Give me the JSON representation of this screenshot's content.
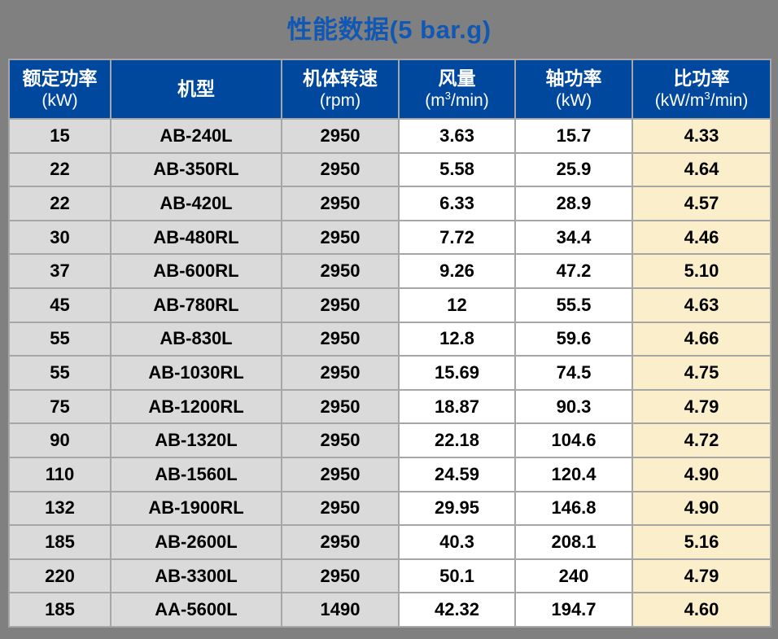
{
  "title": "性能数据(5 bar.g)",
  "table": {
    "columns": [
      {
        "title": "额定功率",
        "unit_pre": "(kW)",
        "unit_sup": "",
        "unit_post": ""
      },
      {
        "title": "机型",
        "unit_pre": "",
        "unit_sup": "",
        "unit_post": ""
      },
      {
        "title": "机体转速",
        "unit_pre": "(rpm)",
        "unit_sup": "",
        "unit_post": ""
      },
      {
        "title": "风量",
        "unit_pre": "(m",
        "unit_sup": "3",
        "unit_post": "/min)"
      },
      {
        "title": "轴功率",
        "unit_pre": "(kW)",
        "unit_sup": "",
        "unit_post": ""
      },
      {
        "title": "比功率",
        "unit_pre": "(kW/m",
        "unit_sup": "3",
        "unit_post": "/min)"
      }
    ],
    "rows": [
      [
        "15",
        "AB-240L",
        "2950",
        "3.63",
        "15.7",
        "4.33"
      ],
      [
        "22",
        "AB-350RL",
        "2950",
        "5.58",
        "25.9",
        "4.64"
      ],
      [
        "22",
        "AB-420L",
        "2950",
        "6.33",
        "28.9",
        "4.57"
      ],
      [
        "30",
        "AB-480RL",
        "2950",
        "7.72",
        "34.4",
        "4.46"
      ],
      [
        "37",
        "AB-600RL",
        "2950",
        "9.26",
        "47.2",
        "5.10"
      ],
      [
        "45",
        "AB-780RL",
        "2950",
        "12",
        "55.5",
        "4.63"
      ],
      [
        "55",
        "AB-830L",
        "2950",
        "12.8",
        "59.6",
        "4.66"
      ],
      [
        "55",
        "AB-1030RL",
        "2950",
        "15.69",
        "74.5",
        "4.75"
      ],
      [
        "75",
        "AB-1200RL",
        "2950",
        "18.87",
        "90.3",
        "4.79"
      ],
      [
        "90",
        "AB-1320L",
        "2950",
        "22.18",
        "104.6",
        "4.72"
      ],
      [
        "110",
        "AB-1560L",
        "2950",
        "24.59",
        "120.4",
        "4.90"
      ],
      [
        "132",
        "AB-1900RL",
        "2950",
        "29.95",
        "146.8",
        "4.90"
      ],
      [
        "185",
        "AB-2600L",
        "2950",
        "40.3",
        "208.1",
        "5.16"
      ],
      [
        "220",
        "AB-3300L",
        "2950",
        "50.1",
        "240",
        "4.79"
      ],
      [
        "185",
        "AA-5600L",
        "1490",
        "42.32",
        "194.7",
        "4.60"
      ]
    ]
  },
  "colors": {
    "page_background": "#808080",
    "title_text": "#1058b4",
    "header_background": "#00489e",
    "header_text": "#ffffff",
    "left_cells_background": "#dadada",
    "middle_cells_background": "#ffffff",
    "specific_power_background": "#faeecb",
    "gridline": "#a6a6a6",
    "data_text": "#000000"
  }
}
